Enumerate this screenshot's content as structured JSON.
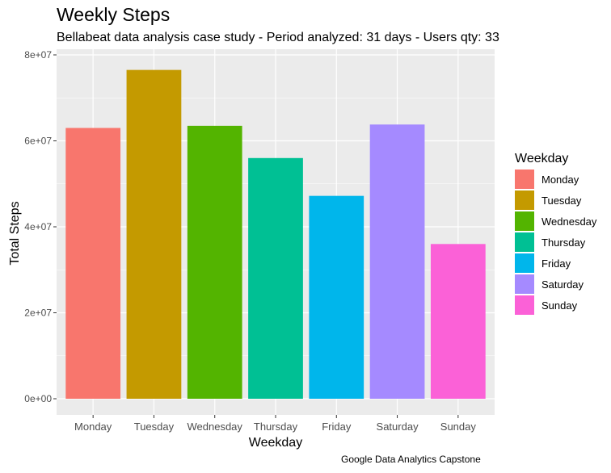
{
  "chart_data": {
    "type": "bar",
    "title": "Weekly Steps",
    "subtitle": "Bellabeat data analysis case study - Period analyzed: 31 days - Users qty: 33",
    "caption": "Google Data Analytics Capstone",
    "xlabel": "Weekday",
    "ylabel": "Total Steps",
    "categories": [
      "Monday",
      "Tuesday",
      "Wednesday",
      "Thursday",
      "Friday",
      "Saturday",
      "Sunday"
    ],
    "values": [
      63000000,
      76500000,
      63500000,
      56000000,
      47200000,
      63800000,
      36000000
    ],
    "colors": [
      "#F8766D",
      "#C49A00",
      "#53B400",
      "#00C094",
      "#00B6EB",
      "#A58AFF",
      "#FB61D7"
    ],
    "yticks": [
      0,
      20000000,
      40000000,
      60000000,
      80000000
    ],
    "ytick_labels": [
      "0e+00",
      "2e+07",
      "4e+07",
      "6e+07",
      "8e+07"
    ],
    "ylim": [
      0,
      80000000
    ],
    "grid": true,
    "legend": {
      "title": "Weekday",
      "position": "right"
    },
    "panel_background": "#EBEBEB",
    "gridline_color": "#FFFFFF"
  }
}
